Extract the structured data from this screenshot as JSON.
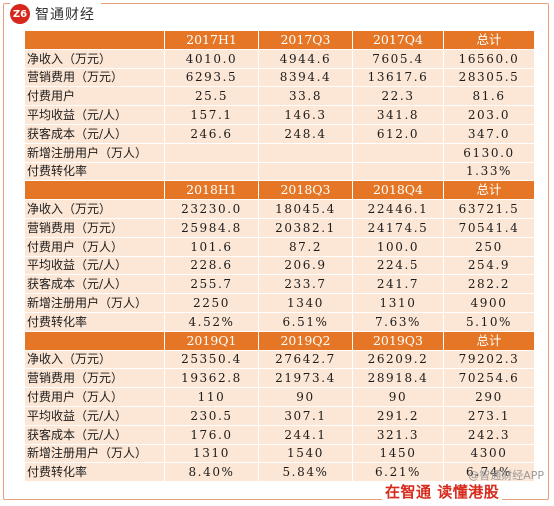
{
  "brand": {
    "logo_text": "智通财经",
    "badge_text": "Z6"
  },
  "table": {
    "sections": [
      {
        "headers": [
          "",
          "2017H1",
          "2017Q3",
          "2017Q4",
          "总计"
        ],
        "rows": [
          [
            "净收入（万元）",
            "4010.0",
            "4944.6",
            "7605.4",
            "16560.0"
          ],
          [
            "营销费用（万元）",
            "6293.5",
            "8394.4",
            "13617.6",
            "28305.5"
          ],
          [
            "付费用户",
            "25.5",
            "33.8",
            "22.3",
            "81.6"
          ],
          [
            "平均收益（元/人）",
            "157.1",
            "146.3",
            "341.8",
            "203.0"
          ],
          [
            "获客成本（元/人）",
            "246.6",
            "248.4",
            "612.0",
            "347.0"
          ],
          [
            "新增注册用户（万人）",
            "",
            "",
            "",
            "6130.0"
          ],
          [
            "付费转化率",
            "",
            "",
            "",
            "1.33%"
          ]
        ]
      },
      {
        "headers": [
          "",
          "2018H1",
          "2018Q3",
          "2018Q4",
          "总计"
        ],
        "rows": [
          [
            "净收入（万元）",
            "23230.0",
            "18045.4",
            "22446.1",
            "63721.5"
          ],
          [
            "营销费用（万元）",
            "25984.8",
            "20382.1",
            "24174.5",
            "70541.4"
          ],
          [
            "付费用户（万人）",
            "101.6",
            "87.2",
            "100.0",
            "250"
          ],
          [
            "平均收益（元/人）",
            "228.6",
            "206.9",
            "224.5",
            "254.9"
          ],
          [
            "获客成本（元/人）",
            "255.7",
            "233.7",
            "241.7",
            "282.2"
          ],
          [
            "新增注册用户（万人）",
            "2250",
            "1340",
            "1310",
            "4900"
          ],
          [
            "付费转化率",
            "4.52%",
            "6.51%",
            "7.63%",
            "5.10%"
          ]
        ]
      },
      {
        "headers": [
          "",
          "2019Q1",
          "2019Q2",
          "2019Q3",
          "总计"
        ],
        "rows": [
          [
            "净收入（万元）",
            "25350.4",
            "27642.7",
            "26209.2",
            "79202.3"
          ],
          [
            "营销费用（万元）",
            "19362.8",
            "21973.4",
            "28918.4",
            "70254.6"
          ],
          [
            "付费用户（万人）",
            "110",
            "90",
            "90",
            "290"
          ],
          [
            "平均收益（元/人）",
            "230.5",
            "307.1",
            "291.2",
            "273.1"
          ],
          [
            "获客成本（元/人）",
            "176.0",
            "244.1",
            "321.3",
            "242.3"
          ],
          [
            "新增注册用户（万人）",
            "1310",
            "1540",
            "1450",
            "4300"
          ],
          [
            "付费转化率",
            "8.40%",
            "5.84%",
            "6.21%",
            "6.74%"
          ]
        ]
      }
    ]
  },
  "footer": {
    "watermark": "@智通财经APP",
    "slogan": "在智通 读懂港股"
  },
  "colors": {
    "header_bg": "#e47625",
    "cell_bg": "#fce6d5",
    "brand_red": "#d7261b"
  }
}
